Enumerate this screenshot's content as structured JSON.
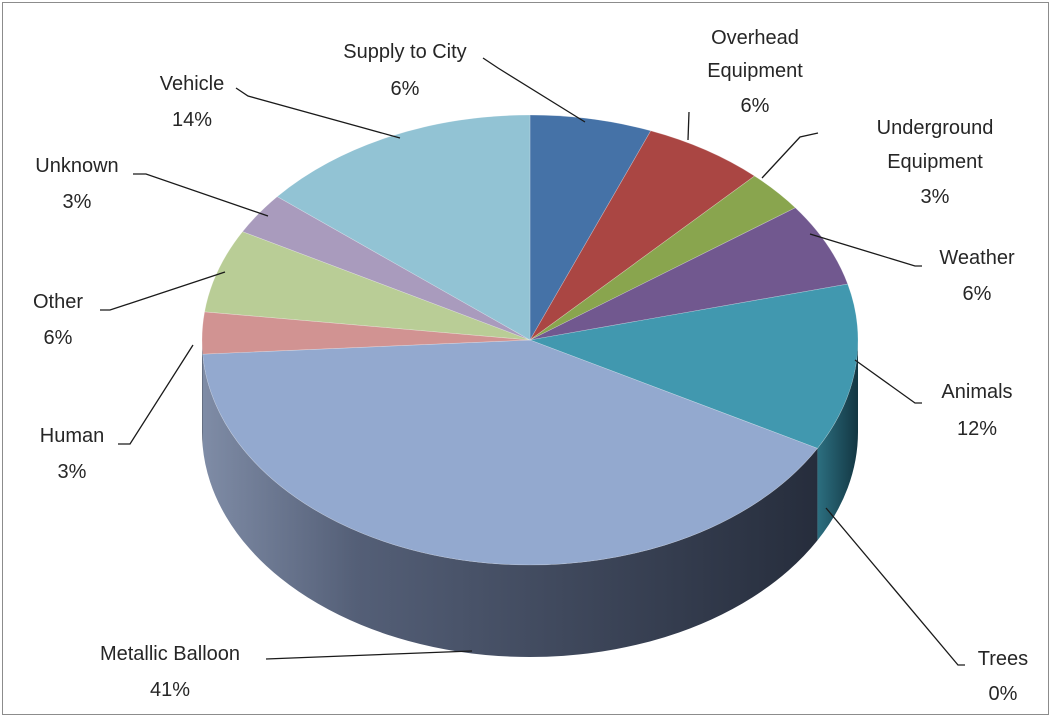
{
  "chart_data": {
    "type": "pie",
    "style": "3d",
    "slices": [
      {
        "label": "Supply to City",
        "value": 6,
        "display": "6%",
        "color": "#4572a7"
      },
      {
        "label": "Overhead Equipment",
        "value": 6,
        "display": "6%",
        "color": "#aa4643"
      },
      {
        "label": "Underground Equipment",
        "value": 3,
        "display": "3%",
        "color": "#89a54e"
      },
      {
        "label": "Weather",
        "value": 6,
        "display": "6%",
        "color": "#71588f"
      },
      {
        "label": "Animals",
        "value": 12,
        "display": "12%",
        "color": "#4198af"
      },
      {
        "label": "Trees",
        "value": 0,
        "display": "0%",
        "color": "#db843d"
      },
      {
        "label": "Metallic Balloon",
        "value": 41,
        "display": "41%",
        "color": "#93a9cf"
      },
      {
        "label": "Human",
        "value": 3,
        "display": "3%",
        "color": "#d19392"
      },
      {
        "label": "Other",
        "value": 6,
        "display": "6%",
        "color": "#b9cd96"
      },
      {
        "label": "Unknown",
        "value": 3,
        "display": "3%",
        "color": "#a99bbd"
      },
      {
        "label": "Vehicle",
        "value": 14,
        "display": "14%",
        "color": "#92c3d4"
      }
    ],
    "legend": "none",
    "data_labels": "outside with leader lines"
  }
}
